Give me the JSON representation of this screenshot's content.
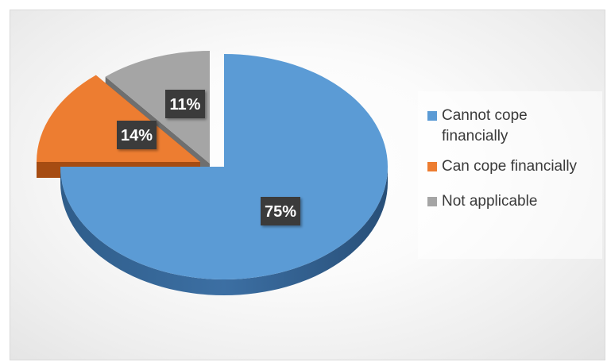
{
  "chart_data": {
    "type": "pie",
    "categories": [
      "Cannot cope financially",
      "Can cope financially",
      "Not applicable"
    ],
    "values": [
      75,
      14,
      11
    ],
    "data_labels": [
      "75%",
      "14%",
      "11%"
    ],
    "colors": [
      "#5b9bd5",
      "#ed7d31",
      "#a5a5a5"
    ],
    "legend_position": "right",
    "style": "3d-exploded"
  }
}
